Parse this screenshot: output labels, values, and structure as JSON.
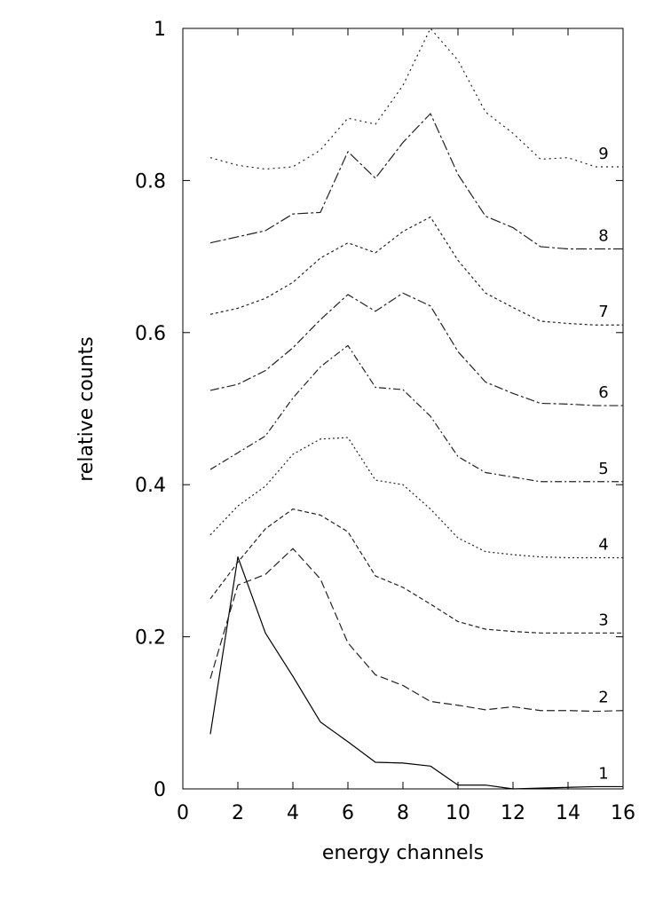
{
  "chart_data": {
    "type": "line",
    "title": "",
    "xlabel": "energy channels",
    "ylabel": "relative counts",
    "xlim": [
      0,
      16
    ],
    "ylim": [
      0,
      1
    ],
    "x_ticks": [
      0,
      2,
      4,
      6,
      8,
      10,
      12,
      14,
      16
    ],
    "y_ticks": [
      0,
      0.2,
      0.4,
      0.6,
      0.8,
      1
    ],
    "y_tick_labels": [
      "0",
      "0.2",
      "0.4",
      "0.6",
      "0.8",
      "1"
    ],
    "grid": false,
    "legend": "none",
    "x": [
      1,
      2,
      3,
      4,
      5,
      6,
      7,
      8,
      9,
      10,
      11,
      12,
      13,
      14,
      15,
      16
    ],
    "series": [
      {
        "label": "1",
        "values": [
          0.072,
          0.305,
          0.205,
          0.148,
          0.088,
          0.062,
          0.035,
          0.034,
          0.03,
          0.005,
          0.005,
          0.0,
          0.001,
          0.002,
          0.003,
          0.003
        ]
      },
      {
        "label": "2",
        "values": [
          0.145,
          0.268,
          0.282,
          0.316,
          0.276,
          0.192,
          0.15,
          0.136,
          0.115,
          0.11,
          0.104,
          0.108,
          0.103,
          0.103,
          0.102,
          0.103
        ]
      },
      {
        "label": "3",
        "values": [
          0.25,
          0.298,
          0.342,
          0.368,
          0.36,
          0.338,
          0.28,
          0.265,
          0.243,
          0.22,
          0.21,
          0.207,
          0.205,
          0.205,
          0.205,
          0.205
        ]
      },
      {
        "label": "4",
        "values": [
          0.334,
          0.372,
          0.398,
          0.44,
          0.46,
          0.462,
          0.406,
          0.4,
          0.368,
          0.33,
          0.312,
          0.308,
          0.305,
          0.304,
          0.304,
          0.304
        ]
      },
      {
        "label": "5",
        "values": [
          0.42,
          0.442,
          0.464,
          0.514,
          0.555,
          0.583,
          0.528,
          0.525,
          0.49,
          0.437,
          0.416,
          0.41,
          0.404,
          0.404,
          0.404,
          0.404
        ]
      },
      {
        "label": "6",
        "values": [
          0.524,
          0.532,
          0.55,
          0.58,
          0.617,
          0.65,
          0.628,
          0.652,
          0.635,
          0.575,
          0.535,
          0.52,
          0.507,
          0.506,
          0.504,
          0.504
        ]
      },
      {
        "label": "7",
        "values": [
          0.624,
          0.632,
          0.645,
          0.666,
          0.698,
          0.718,
          0.705,
          0.733,
          0.752,
          0.695,
          0.652,
          0.633,
          0.615,
          0.612,
          0.61,
          0.61
        ]
      },
      {
        "label": "8",
        "values": [
          0.718,
          0.726,
          0.734,
          0.756,
          0.758,
          0.838,
          0.803,
          0.85,
          0.888,
          0.808,
          0.753,
          0.738,
          0.713,
          0.71,
          0.71,
          0.71
        ]
      },
      {
        "label": "9",
        "values": [
          0.83,
          0.82,
          0.815,
          0.818,
          0.84,
          0.882,
          0.874,
          0.925,
          1.0,
          0.958,
          0.89,
          0.862,
          0.828,
          0.83,
          0.818,
          0.818
        ]
      }
    ]
  }
}
